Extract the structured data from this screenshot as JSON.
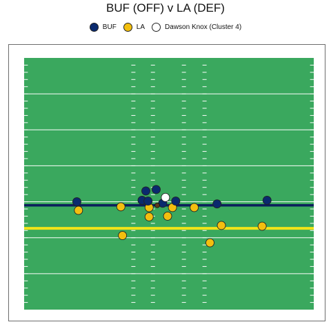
{
  "title": "BUF (OFF) v LA (DEF)",
  "legend": [
    {
      "label": "BUF",
      "color": "#0a2a6e"
    },
    {
      "label": "LA",
      "color": "#f3bf0f"
    },
    {
      "label": "Dawson Knox (Cluster 4)",
      "color": "#ffffff"
    }
  ],
  "colors": {
    "field": "#3aa85e",
    "yard_line": "#ffffff",
    "line_of_scrimmage": "#0b1f5c",
    "first_down_line": "#f2e418",
    "offense": "#0a2a6e",
    "defense": "#f3bf0f",
    "highlight": "#ffffff"
  },
  "field": {
    "yards_shown": [
      0,
      35
    ],
    "field_width_yards": 53.3,
    "line_of_scrimmage_yard": 14.5,
    "first_down_yard": 11.3
  },
  "players": {
    "offense": [
      {
        "x": 9.7,
        "y": 15.0
      },
      {
        "x": 21.7,
        "y": 15.2
      },
      {
        "x": 22.4,
        "y": 16.5
      },
      {
        "x": 24.3,
        "y": 16.7
      },
      {
        "x": 22.8,
        "y": 15.1
      },
      {
        "x": 25.5,
        "y": 14.8
      },
      {
        "x": 27.9,
        "y": 15.1
      },
      {
        "x": 35.5,
        "y": 14.7
      },
      {
        "x": 44.7,
        "y": 15.2
      }
    ],
    "defense": [
      {
        "x": 10.0,
        "y": 13.8
      },
      {
        "x": 17.8,
        "y": 14.3
      },
      {
        "x": 23.0,
        "y": 14.2
      },
      {
        "x": 23.0,
        "y": 12.9
      },
      {
        "x": 26.4,
        "y": 13.0
      },
      {
        "x": 27.3,
        "y": 14.2
      },
      {
        "x": 31.3,
        "y": 14.2
      },
      {
        "x": 36.3,
        "y": 11.7
      },
      {
        "x": 43.8,
        "y": 11.6
      },
      {
        "x": 18.1,
        "y": 10.3
      },
      {
        "x": 34.2,
        "y": 9.3
      }
    ],
    "highlight": [
      {
        "x": 26.0,
        "y": 15.6
      }
    ],
    "ball": {
      "x": 24.5,
      "y": 14.5
    }
  }
}
